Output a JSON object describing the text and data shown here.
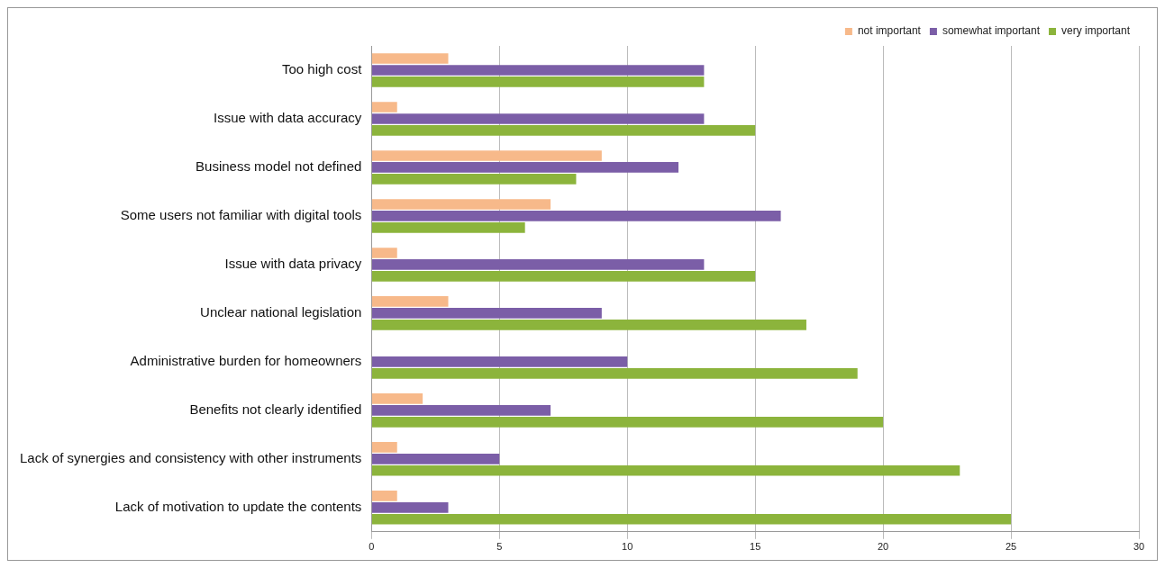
{
  "chart_data": {
    "type": "bar",
    "orientation": "horizontal",
    "categories": [
      "Too high cost",
      "Issue with data accuracy",
      "Business model not defined",
      "Some users not familiar with digital tools",
      "Issue with data privacy",
      "Unclear national legislation",
      "Administrative burden for homeowners",
      "Benefits not clearly identified",
      "Lack of synergies and consistency with other instruments",
      "Lack of motivation to update the contents"
    ],
    "series": [
      {
        "name": "not important",
        "color": "#f7b98a",
        "values": [
          3,
          1,
          9,
          7,
          1,
          3,
          0,
          2,
          1,
          1
        ]
      },
      {
        "name": "somewhat important",
        "color": "#7b5ea7",
        "values": [
          13,
          13,
          12,
          16,
          13,
          9,
          10,
          7,
          5,
          3
        ]
      },
      {
        "name": "very important",
        "color": "#8cb43c",
        "values": [
          13,
          15,
          8,
          6,
          15,
          17,
          19,
          20,
          23,
          25
        ]
      }
    ],
    "xlim": [
      0,
      30
    ],
    "xticks": [
      0,
      5,
      10,
      15,
      20,
      25,
      30
    ],
    "grid": "x",
    "legend": "top right"
  }
}
